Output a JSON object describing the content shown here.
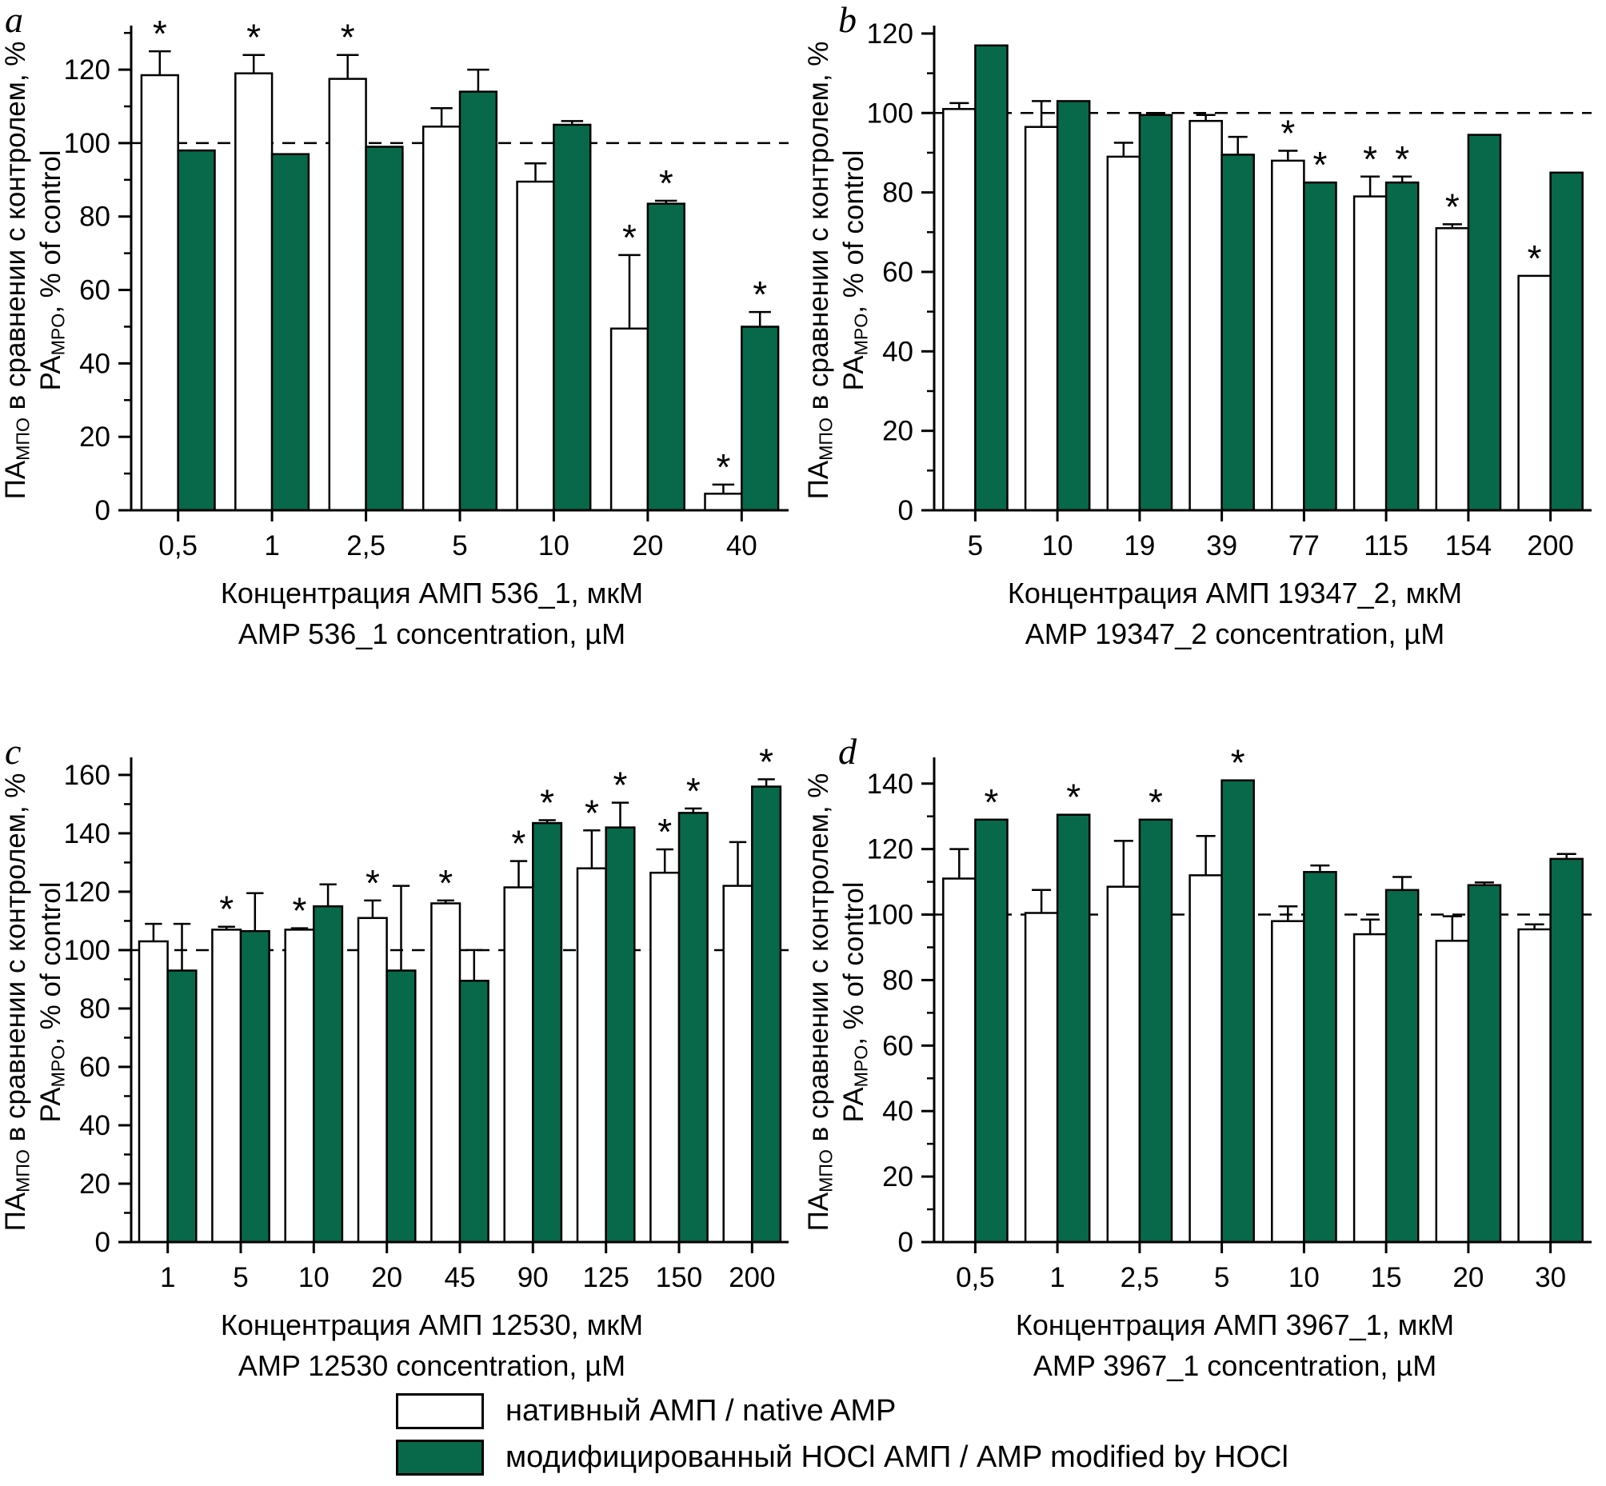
{
  "ylabel": {
    "ru_pre": "ПА",
    "ru_sub": "МПО",
    "ru_post": " в сравнении с контролем, %",
    "en_pre": "PA",
    "en_sub": "MPO",
    "en_post": ", % of control"
  },
  "colors": {
    "native": "#ffffff",
    "modified": "#07694a",
    "axis": "#000000"
  },
  "legend": {
    "items": [
      {
        "label": "нативный АМП / native AMP",
        "color": "#ffffff"
      },
      {
        "label": "модифицированный HOCl АМП / AMP modified by HOCl",
        "color": "#07694a"
      }
    ]
  },
  "chart_data": [
    {
      "type": "bar",
      "panel": "a",
      "categories": [
        "0,5",
        "1",
        "2,5",
        "5",
        "10",
        "20",
        "40"
      ],
      "series": [
        {
          "name": "нативный АМП / native AMP",
          "values": [
            118.5,
            119,
            117.5,
            104.5,
            89.5,
            49.5,
            4.5
          ],
          "errors": [
            6.5,
            5,
            6.5,
            5,
            5,
            20,
            2.5
          ],
          "stars": [
            1,
            1,
            1,
            0,
            0,
            1,
            1
          ]
        },
        {
          "name": "модифицированный HOCl АМП / AMP modified by HOCl",
          "values": [
            98,
            97,
            99,
            114,
            105,
            83.5,
            50
          ],
          "errors": [
            0,
            0,
            0,
            6,
            1,
            0.8,
            4
          ],
          "stars": [
            0,
            0,
            0,
            0,
            0,
            1,
            1
          ]
        }
      ],
      "xlabel_ru": "Концентрация АМП 536_1, мкМ",
      "xlabel_en": "AMP 536_1 concentration, µM",
      "ylim": [
        0,
        132
      ],
      "yticks": [
        0,
        20,
        40,
        60,
        80,
        100,
        120
      ],
      "dashed_line": 100
    },
    {
      "type": "bar",
      "panel": "b",
      "categories": [
        "5",
        "10",
        "19",
        "39",
        "77",
        "115",
        "154",
        "200"
      ],
      "series": [
        {
          "name": "нативный АМП / native AMP",
          "values": [
            101,
            96.5,
            89,
            98,
            88,
            79,
            71,
            59
          ],
          "errors": [
            1.5,
            6.5,
            3.5,
            1.5,
            2.5,
            5,
            1,
            0
          ],
          "stars": [
            0,
            0,
            0,
            0,
            1,
            1,
            1,
            1
          ]
        },
        {
          "name": "модифицированный HOCl АМП / AMP modified by HOCl",
          "values": [
            117,
            103,
            99.5,
            89.5,
            82.5,
            82.5,
            94.5,
            85
          ],
          "errors": [
            0,
            0,
            0.5,
            4.5,
            0,
            1.5,
            0,
            0
          ],
          "stars": [
            0,
            0,
            0,
            0,
            1,
            1,
            0,
            0
          ]
        }
      ],
      "xlabel_ru": "Концентрация АМП 19347_2, мкМ",
      "xlabel_en": "AMP 19347_2 concentration, µM",
      "ylim": [
        0,
        122
      ],
      "yticks": [
        0,
        20,
        40,
        60,
        80,
        100,
        120
      ],
      "dashed_line": 100
    },
    {
      "type": "bar",
      "panel": "c",
      "categories": [
        "1",
        "5",
        "10",
        "20",
        "45",
        "90",
        "125",
        "150",
        "200"
      ],
      "series": [
        {
          "name": "нативный АМП / native AMP",
          "values": [
            103,
            107,
            107,
            111,
            116,
            121.5,
            128,
            126.5,
            122
          ],
          "errors": [
            6,
            1,
            0.5,
            6,
            1,
            9,
            13,
            8,
            15
          ],
          "stars": [
            0,
            1,
            1,
            1,
            1,
            1,
            1,
            1,
            0
          ]
        },
        {
          "name": "модифицированный HOCl АМП / AMP modified by HOCl",
          "values": [
            93,
            106.5,
            115,
            93,
            89.5,
            143.5,
            142,
            147,
            156
          ],
          "errors": [
            16,
            13,
            7.5,
            29,
            10.5,
            1,
            8.5,
            1.5,
            2.5
          ],
          "stars": [
            0,
            0,
            0,
            0,
            0,
            1,
            1,
            1,
            1
          ]
        }
      ],
      "xlabel_ru": "Концентрация АМП 12530, мкМ",
      "xlabel_en": "AMP 12530 concentration, µM",
      "ylim": [
        0,
        166
      ],
      "yticks": [
        0,
        20,
        40,
        60,
        80,
        100,
        120,
        140,
        160
      ],
      "dashed_line": 100
    },
    {
      "type": "bar",
      "panel": "d",
      "categories": [
        "0,5",
        "1",
        "2,5",
        "5",
        "10",
        "15",
        "20",
        "30"
      ],
      "series": [
        {
          "name": "нативный АМП / native AMP",
          "values": [
            111,
            100.5,
            108.5,
            112,
            98,
            94,
            92,
            95.5
          ],
          "errors": [
            9,
            7,
            14,
            12,
            4.5,
            4.5,
            7.5,
            1.5
          ],
          "stars": [
            0,
            0,
            0,
            0,
            0,
            0,
            0,
            0
          ]
        },
        {
          "name": "модифицированный HOCl АМП / AMP modified by HOCl",
          "values": [
            129,
            130.5,
            129,
            141,
            113,
            107.5,
            109,
            117
          ],
          "errors": [
            0,
            0,
            0,
            0,
            2,
            4,
            0.8,
            1.5
          ],
          "stars": [
            1,
            1,
            1,
            1,
            0,
            0,
            0,
            0
          ]
        }
      ],
      "xlabel_ru": "Концентрация АМП 3967_1, мкМ",
      "xlabel_en": "AMP 3967_1 concentration, µM",
      "ylim": [
        0,
        148
      ],
      "yticks": [
        0,
        20,
        40,
        60,
        80,
        100,
        120,
        140
      ],
      "dashed_line": 100
    }
  ]
}
